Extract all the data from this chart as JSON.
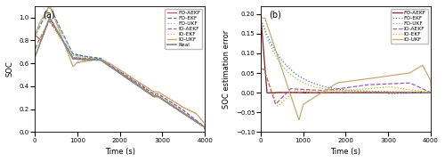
{
  "figsize": [
    5.0,
    1.82
  ],
  "dpi": 100,
  "background_color": "#ffffff",
  "subplot_labels": [
    "(a)",
    "(b)"
  ],
  "legend_entries_a": [
    "FO-AEKF",
    "FO-EKF",
    "FO-UKF",
    "IO-AEKF",
    "IO-EKF",
    "IO-UKF",
    "Real"
  ],
  "legend_entries_b": [
    "FO-AEKF",
    "FO-EKF",
    "FO-UKF",
    "IO-AEKF",
    "IO-EKF",
    "IO-UKF"
  ],
  "colors_a": [
    "#c0504d",
    "#4472c4",
    "#9bbb59",
    "#9b59b6",
    "#c8b400",
    "#c8a870",
    "#888888"
  ],
  "linestyles_a": [
    "-",
    "--",
    ":",
    "--",
    ":",
    "-",
    "-"
  ],
  "linewidths_a": [
    0.9,
    0.9,
    0.9,
    0.9,
    0.9,
    0.9,
    1.2
  ],
  "colors_b": [
    "#8b2020",
    "#4472c4",
    "#9bbb59",
    "#9b59b6",
    "#c8b400",
    "#c8a870"
  ],
  "linestyles_b": [
    "-",
    ":",
    ":",
    "--",
    ":",
    "-"
  ],
  "linewidths_b": [
    0.9,
    0.9,
    0.9,
    0.9,
    0.9,
    0.9
  ],
  "xlabel": "Time (s)",
  "ylabel_a": "SOC",
  "ylabel_b": "SOC estimation error",
  "xlim": [
    0,
    4000
  ],
  "ylim_a": [
    0.0,
    1.1
  ],
  "ylim_b": [
    -0.1,
    0.22
  ],
  "yticks_a": [
    0.0,
    0.2,
    0.4,
    0.6,
    0.8,
    1.0
  ],
  "yticks_b": [
    -0.1,
    -0.05,
    0.0,
    0.05,
    0.1,
    0.15,
    0.2
  ],
  "xticks": [
    0,
    1000,
    2000,
    3000,
    4000
  ]
}
